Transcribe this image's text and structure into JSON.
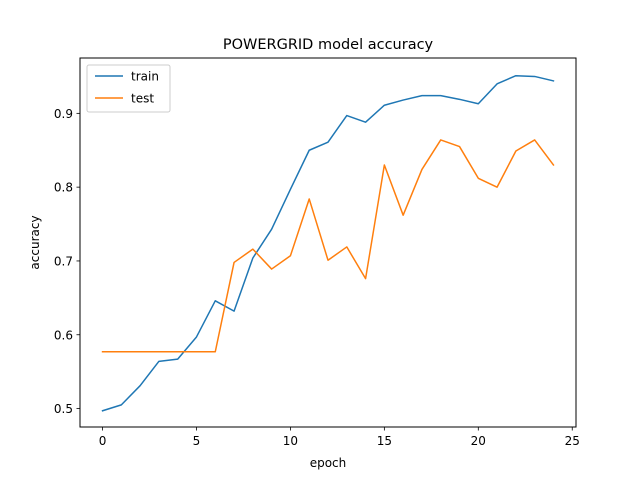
{
  "chart_data": {
    "type": "line",
    "title": "POWERGRID model accuracy",
    "xlabel": "epoch",
    "ylabel": "accuracy",
    "xlim": [
      -1.2,
      25.2
    ],
    "ylim": [
      0.475,
      0.975
    ],
    "xticks": [
      0,
      5,
      10,
      15,
      20,
      25
    ],
    "yticks": [
      0.5,
      0.6,
      0.7,
      0.8,
      0.9
    ],
    "xtick_labels": [
      "0",
      "5",
      "10",
      "15",
      "20",
      "25"
    ],
    "ytick_labels": [
      "0.5",
      "0.6",
      "0.7",
      "0.8",
      "0.9"
    ],
    "grid": false,
    "legend_position": "top-left",
    "x": [
      0,
      1,
      2,
      3,
      4,
      5,
      6,
      7,
      8,
      9,
      10,
      11,
      12,
      13,
      14,
      15,
      16,
      17,
      18,
      19,
      20,
      21,
      22,
      23,
      24
    ],
    "series": [
      {
        "name": "train",
        "color": "#1f77b4",
        "values": [
          0.497,
          0.505,
          0.531,
          0.564,
          0.567,
          0.597,
          0.646,
          0.632,
          0.704,
          0.743,
          0.797,
          0.85,
          0.861,
          0.897,
          0.888,
          0.911,
          0.918,
          0.924,
          0.924,
          0.919,
          0.913,
          0.94,
          0.951,
          0.95,
          0.944
        ]
      },
      {
        "name": "test",
        "color": "#ff7f0e",
        "values": [
          0.577,
          0.577,
          0.577,
          0.577,
          0.577,
          0.577,
          0.577,
          0.698,
          0.716,
          0.689,
          0.707,
          0.784,
          0.701,
          0.719,
          0.676,
          0.83,
          0.762,
          0.824,
          0.864,
          0.855,
          0.812,
          0.8,
          0.849,
          0.864,
          0.83
        ]
      }
    ]
  }
}
